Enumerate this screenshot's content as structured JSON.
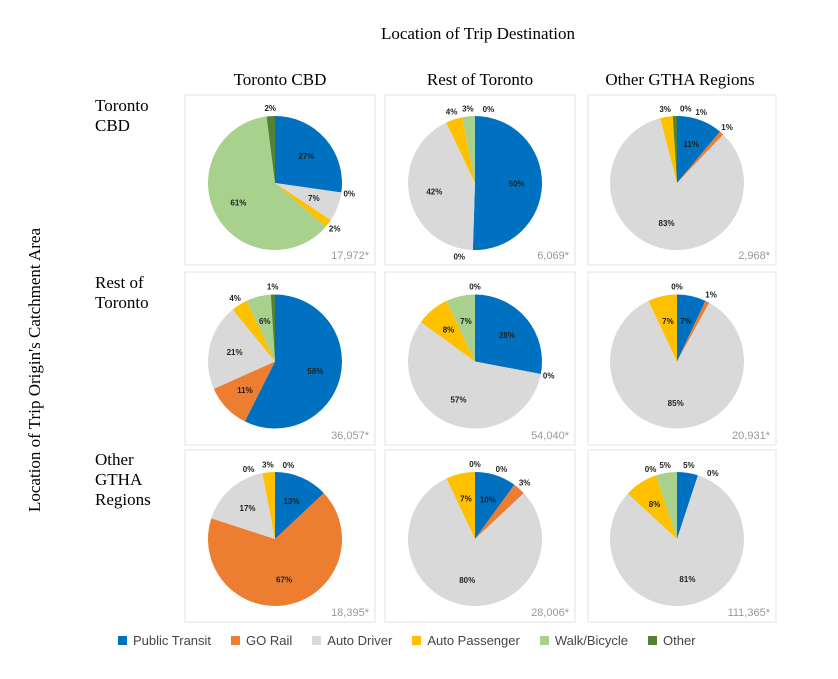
{
  "chart_data": {
    "type": "pie",
    "title": "Location of Trip Destination",
    "ylabel": "Location of Trip Origin's Catchment Area",
    "columns": [
      "Toronto CBD",
      "Rest of Toronto",
      "Other GTHA Regions"
    ],
    "rows": [
      "Toronto\nCBD",
      "Rest of\nToronto",
      "Other\nGTHA\nRegions"
    ],
    "categories": [
      "Public Transit",
      "GO Rail",
      "Auto Driver",
      "Auto Passenger",
      "Walk/Bicycle",
      "Other"
    ],
    "colors": [
      "#0070C0",
      "#ED7D31",
      "#D9D9D9",
      "#FFC000",
      "#A9D18E",
      "#548235"
    ],
    "pies": [
      {
        "total": "17,972*",
        "values": [
          27,
          0,
          7,
          2,
          61,
          2
        ],
        "labels": [
          "27%",
          "0%",
          "7%",
          "2%",
          "61%",
          "2%"
        ]
      },
      {
        "total": "6,069*",
        "values": [
          50,
          0,
          42,
          4,
          3,
          0
        ],
        "labels": [
          "50%",
          "0%",
          "42%",
          "4%",
          "3%",
          "0%"
        ]
      },
      {
        "total": "2,968*",
        "values": [
          11,
          1,
          83,
          3,
          0,
          1
        ],
        "labels": [
          "11%",
          "1%",
          "83%",
          "3%",
          "0%",
          "1%"
        ]
      },
      {
        "total": "36,057*",
        "values": [
          58,
          11,
          21,
          4,
          6,
          1
        ],
        "labels": [
          "58%",
          "11%",
          "21%",
          "4%",
          "6%",
          "1%"
        ]
      },
      {
        "total": "54,040*",
        "values": [
          28,
          0,
          57,
          8,
          7,
          0
        ],
        "labels": [
          "28%",
          "0%",
          "57%",
          "8%",
          "7%",
          "0%"
        ]
      },
      {
        "total": "20,931*",
        "values": [
          7,
          1,
          85,
          7,
          0,
          0
        ],
        "labels": [
          "7%",
          "1%",
          "85%",
          "7%",
          null,
          "0%"
        ]
      },
      {
        "total": "18,395*",
        "values": [
          13,
          67,
          17,
          3,
          0,
          0
        ],
        "labels": [
          "13%",
          "67%",
          "17%",
          "3%",
          "0%",
          "0%"
        ]
      },
      {
        "total": "28,006*",
        "values": [
          10,
          3,
          80,
          7,
          0,
          0
        ],
        "labels": [
          "10%",
          "3%",
          "80%",
          "7%",
          "0%",
          "0%"
        ]
      },
      {
        "total": "111,365*",
        "values": [
          5,
          0,
          81,
          8,
          5,
          0
        ],
        "labels": [
          "5%",
          "0%",
          "81%",
          "8%",
          "5%",
          "0%"
        ]
      }
    ],
    "legend_position": "bottom"
  }
}
